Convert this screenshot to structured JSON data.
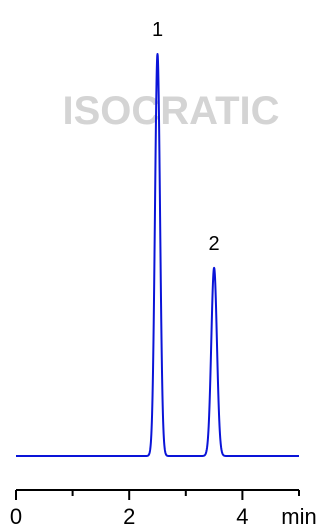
{
  "watermark": "ISOCRATIC",
  "chart_data": {
    "type": "line",
    "title": "",
    "xlabel": "",
    "ylabel": "",
    "x_unit": "min",
    "xlim": [
      0,
      5
    ],
    "ylim": [
      0,
      1
    ],
    "x_ticks": [
      {
        "value": 0,
        "label": "0"
      },
      {
        "value": 2,
        "label": "2"
      },
      {
        "value": 4,
        "label": "4"
      }
    ],
    "x_minor_ticks": [
      1,
      3,
      5
    ],
    "grid": false,
    "series": [
      {
        "color": "#0a14d8",
        "baseline": 0.0,
        "peaks": [
          {
            "label": "1",
            "time": 2.5,
            "height": 1.0,
            "width": 0.045
          },
          {
            "label": "2",
            "time": 3.5,
            "height": 0.468,
            "width": 0.05
          }
        ]
      }
    ]
  }
}
